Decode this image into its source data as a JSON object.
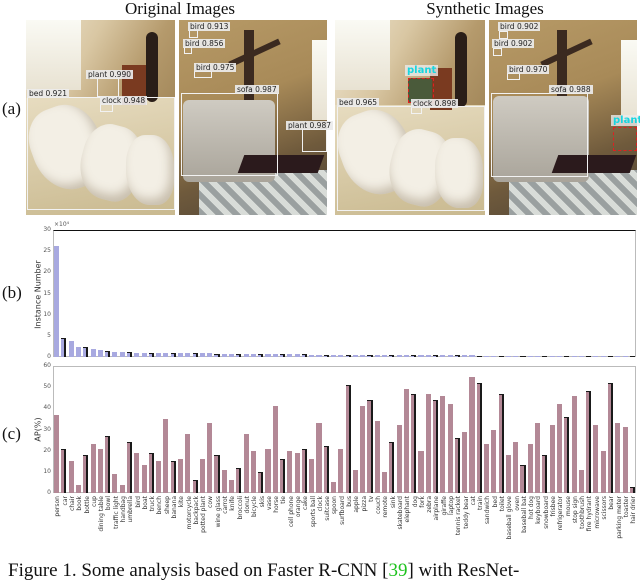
{
  "figure": {
    "columns": [
      {
        "title": "Original Images"
      },
      {
        "title": "Synthetic Images"
      }
    ],
    "panels": {
      "a": "(a)",
      "b": "(b)",
      "c": "(c)"
    },
    "caption": {
      "prefix": "Figure 1. Some analysis based on Faster R-CNN [",
      "ref": "39",
      "suffix": "] with ResNet-"
    }
  },
  "panel_a": {
    "original": {
      "bedroom": [
        {
          "label": "plant 0.990"
        },
        {
          "label": "bed 0.921"
        },
        {
          "label": "clock 0.948"
        }
      ],
      "living": [
        {
          "label": "bird 0.913"
        },
        {
          "label": "bird 0.856"
        },
        {
          "label": "bird 0.975"
        },
        {
          "label": "sofa 0.987"
        },
        {
          "label": "plant 0.987"
        }
      ]
    },
    "synthetic": {
      "bedroom": [
        {
          "label": "plant"
        },
        {
          "label": "bed 0.965"
        },
        {
          "label": "clock 0.898"
        }
      ],
      "living": [
        {
          "label": "bird 0.902"
        },
        {
          "label": "bird 0.902"
        },
        {
          "label": "bird 0.970"
        },
        {
          "label": "sofa 0.988"
        },
        {
          "label": "plant"
        }
      ]
    }
  },
  "chart_data": [
    {
      "type": "bar",
      "title": "",
      "xlabel": "",
      "ylabel": "Instance Number",
      "y_multiplier": "×10⁴",
      "ylim": [
        0,
        30
      ],
      "yticks": [
        "0",
        "5",
        "10",
        "15",
        "20",
        "25",
        "30"
      ],
      "bar_color": "#a8a9e0",
      "categories": [
        "person",
        "car",
        "chair",
        "book",
        "bottle",
        "cup",
        "dining table",
        "bowl",
        "traffic light",
        "handbag",
        "umbrella",
        "bird",
        "boat",
        "truck",
        "bench",
        "sheep",
        "banana",
        "kite",
        "motorcycle",
        "backpack",
        "potted plant",
        "cow",
        "wine glass",
        "carrot",
        "knife",
        "broccoli",
        "donut",
        "bicycle",
        "skis",
        "vase",
        "horse",
        "tie",
        "cell phone",
        "orange",
        "cake",
        "sports ball",
        "clock",
        "suitcase",
        "spoon",
        "surfboard",
        "bus",
        "apple",
        "pizza",
        "tv",
        "couch",
        "remote",
        "sink",
        "skateboard",
        "elephant",
        "dog",
        "fork",
        "zebra",
        "airplane",
        "giraffe",
        "laptop",
        "tennis racket",
        "teddy bear",
        "cat",
        "train",
        "sandwich",
        "bed",
        "toilet",
        "baseball glove",
        "oven",
        "baseball bat",
        "hot dog",
        "keyboard",
        "snowboard",
        "frisbee",
        "refrigerator",
        "mouse",
        "stop sign",
        "toothbrush",
        "fire hydrant",
        "microwave",
        "scissors",
        "bear",
        "parking meter",
        "toaster",
        "hair drier"
      ],
      "values": [
        26.2,
        4.4,
        3.9,
        2.4,
        2.4,
        2.0,
        1.6,
        1.4,
        1.3,
        1.2,
        1.1,
        1.05,
        1.05,
        1.0,
        0.95,
        0.95,
        0.9,
        0.9,
        0.9,
        0.88,
        0.86,
        0.85,
        0.8,
        0.78,
        0.76,
        0.74,
        0.72,
        0.7,
        0.68,
        0.66,
        0.65,
        0.64,
        0.62,
        0.6,
        0.6,
        0.58,
        0.58,
        0.56,
        0.55,
        0.54,
        0.52,
        0.52,
        0.5,
        0.5,
        0.48,
        0.47,
        0.46,
        0.45,
        0.45,
        0.44,
        0.43,
        0.42,
        0.41,
        0.4,
        0.39,
        0.38,
        0.37,
        0.36,
        0.35,
        0.34,
        0.33,
        0.32,
        0.31,
        0.3,
        0.3,
        0.29,
        0.28,
        0.27,
        0.26,
        0.25,
        0.24,
        0.23,
        0.22,
        0.21,
        0.2,
        0.18,
        0.16,
        0.12,
        0.1,
        0.08
      ],
      "grid": false
    },
    {
      "type": "bar",
      "title": "",
      "xlabel": "",
      "ylabel": "AP(%)",
      "ylim": [
        0,
        60
      ],
      "yticks": [
        "0",
        "10",
        "20",
        "30",
        "40",
        "50",
        "60"
      ],
      "bar_color": "#b38896",
      "categories": [
        "person",
        "car",
        "chair",
        "book",
        "bottle",
        "cup",
        "dining table",
        "bowl",
        "traffic light",
        "handbag",
        "umbrella",
        "bird",
        "boat",
        "truck",
        "bench",
        "sheep",
        "banana",
        "kite",
        "motorcycle",
        "backpack",
        "potted plant",
        "cow",
        "wine glass",
        "carrot",
        "knife",
        "broccoli",
        "donut",
        "bicycle",
        "skis",
        "vase",
        "horse",
        "tie",
        "cell phone",
        "orange",
        "cake",
        "sports ball",
        "clock",
        "suitcase",
        "spoon",
        "surfboard",
        "bus",
        "apple",
        "pizza",
        "tv",
        "couch",
        "remote",
        "sink",
        "skateboard",
        "elephant",
        "dog",
        "fork",
        "zebra",
        "airplane",
        "giraffe",
        "laptop",
        "tennis racket",
        "teddy bear",
        "cat",
        "train",
        "sandwich",
        "bed",
        "toilet",
        "baseball glove",
        "oven",
        "baseball bat",
        "hot dog",
        "keyboard",
        "snowboard",
        "frisbee",
        "refrigerator",
        "mouse",
        "stop sign",
        "toothbrush",
        "fire hydrant",
        "microwave",
        "scissors",
        "bear",
        "parking meter",
        "toaster",
        "hair drier"
      ],
      "values": [
        37,
        21,
        15,
        4,
        18,
        23,
        21,
        27,
        9,
        4,
        24,
        19,
        13,
        19,
        15,
        35,
        15,
        16,
        28,
        6,
        16,
        33,
        18,
        11,
        6,
        12,
        28,
        20,
        10,
        21,
        41,
        16,
        20,
        19,
        21,
        16,
        33,
        22,
        5,
        21,
        51,
        11,
        41,
        44,
        34,
        10,
        24,
        32,
        49,
        47,
        20,
        47,
        44,
        46,
        42,
        26,
        29,
        55,
        52,
        23,
        30,
        47,
        18,
        24,
        13,
        23,
        33,
        18,
        32,
        42,
        36,
        46,
        11,
        48,
        32,
        20,
        52,
        33,
        31,
        3
      ],
      "grid": false
    }
  ]
}
